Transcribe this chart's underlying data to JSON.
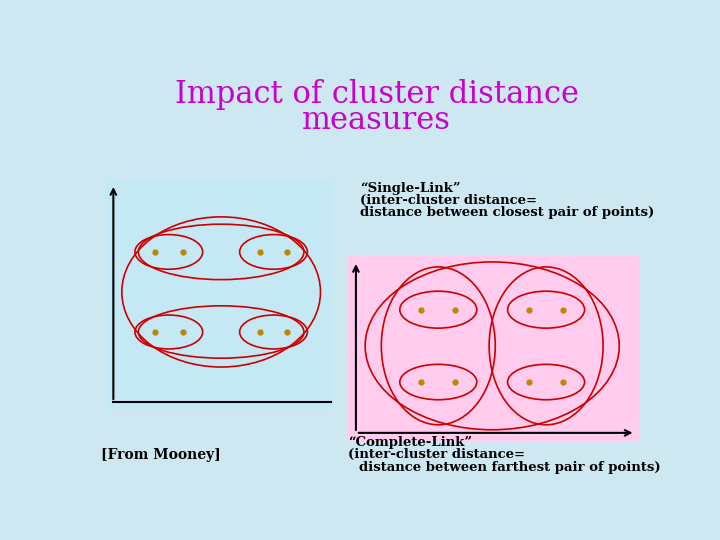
{
  "title_line1": "Impact of cluster distance",
  "title_line2": "measures",
  "title_color": "#cc00cc",
  "title_fontsize": 22,
  "bg_color": "#c5e8f5",
  "bg_color2": "#ffccee",
  "slide_bg": "#cde8f0",
  "ellipse_color": "#cc0000",
  "point_color": "#bb8800",
  "single_link_label": "“Single-Link”",
  "single_link_sub1": "(inter-cluster distance=",
  "single_link_sub2": "distance between closest pair of points)",
  "complete_link_label": "“Complete-Link”",
  "complete_link_sub1": "(inter-cluster distance=",
  "complete_link_sub2": "distance between farthest pair of points)",
  "from_mooney": "[From Mooney]",
  "font_family": "DejaVu Serif"
}
